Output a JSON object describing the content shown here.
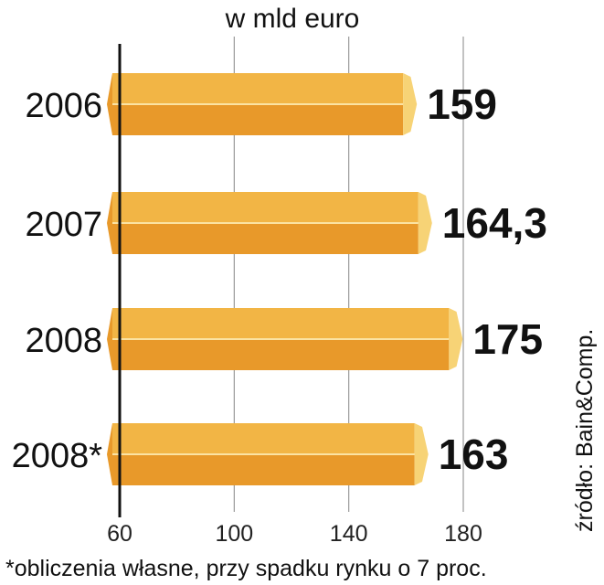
{
  "chart_data": {
    "type": "bar",
    "orientation": "horizontal",
    "unit_label": "w mld euro",
    "categories": [
      "2006",
      "2007",
      "2008",
      "2008*"
    ],
    "values": [
      159,
      164.3,
      175,
      163
    ],
    "value_labels": [
      "159",
      "164,3",
      "175",
      "163"
    ],
    "xlim": [
      60,
      180
    ],
    "x_ticks": [
      "60",
      "100",
      "140",
      "180"
    ],
    "grid": true,
    "footnote": "*obliczenia własne, przy spadku rynku o 7 proc.",
    "source": "źródło: Bain&Comp.",
    "colors": {
      "bar_top": "#F2B545",
      "bar_bottom": "#E8992A",
      "bar_end": "#F7D376",
      "grid": "#999999",
      "axis": "#111111"
    }
  }
}
